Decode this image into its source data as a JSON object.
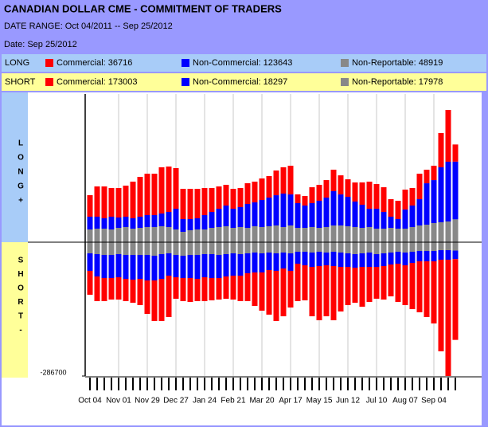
{
  "chart_data": {
    "type": "cot_stacked_bar",
    "title": "CANADIAN DOLLAR CME - COMMITMENT OF TRADERS",
    "date_range": "DATE RANGE: Oct 04/2011 -- Sep 25/2012",
    "date": "Date: Sep 25/2012",
    "long_row": {
      "label": "LONG",
      "legend": [
        "Commercial: 36716",
        "Non-Commercial: 123643",
        "Non-Reportable: 48919"
      ]
    },
    "short_row": {
      "label": "SHORT",
      "legend": [
        "Commercial: 173003",
        "Non-Commercial: 18297",
        "Non-Reportable: 17978"
      ]
    },
    "long_axis_label": "LONG+",
    "short_axis_label": "SHORT-",
    "categories": [
      "Oct 04",
      null,
      null,
      null,
      "Nov 01",
      null,
      null,
      null,
      "Nov 29",
      null,
      null,
      null,
      "Dec 27",
      null,
      null,
      null,
      "Jan 24",
      null,
      null,
      null,
      "Feb 21",
      null,
      null,
      null,
      "Mar 20",
      null,
      null,
      null,
      "Apr 17",
      null,
      null,
      null,
      "May 15",
      null,
      null,
      null,
      "Jun 12",
      null,
      null,
      null,
      "Jul 10",
      null,
      null,
      null,
      "Aug 07",
      null,
      null,
      null,
      "Sep 04",
      null,
      null,
      null
    ],
    "ylim": [
      -286700,
      317400
    ],
    "yticks": [
      -286700
    ],
    "series": [
      {
        "name": "Non-Reportable",
        "group": "long",
        "color": "#888888",
        "values": [
          27300,
          29000,
          29000,
          27300,
          30700,
          32400,
          29000,
          30700,
          32400,
          32400,
          34100,
          32400,
          27300,
          22200,
          25600,
          27300,
          27300,
          30700,
          32400,
          34100,
          30700,
          32400,
          30700,
          34100,
          32400,
          34100,
          35800,
          32400,
          35800,
          30700,
          30700,
          32400,
          30700,
          32400,
          35800,
          35800,
          34100,
          32400,
          30700,
          32400,
          29000,
          29000,
          30700,
          29000,
          29000,
          32400,
          35800,
          37500,
          40900,
          42700,
          44400,
          48919
        ]
      },
      {
        "name": "Non-Commercial",
        "group": "long",
        "color": "#0000ff",
        "values": [
          27300,
          25600,
          22200,
          27300,
          22200,
          22200,
          22200,
          23900,
          25600,
          25600,
          27300,
          32400,
          44400,
          27300,
          23900,
          23900,
          30700,
          34100,
          39200,
          44400,
          40900,
          42700,
          51200,
          51200,
          58000,
          61400,
          64800,
          71700,
          66500,
          52900,
          47800,
          51200,
          58000,
          63100,
          73400,
          66500,
          63100,
          54600,
          49500,
          39200,
          42700,
          35800,
          23900,
          20500,
          40900,
          46100,
          56300,
          88700,
          92100,
          117700,
          128000,
          123643
        ]
      },
      {
        "name": "Commercial",
        "group": "long",
        "color": "#ff0000",
        "values": [
          46100,
          64800,
          68200,
          61400,
          63100,
          66500,
          78500,
          85300,
          88700,
          88700,
          99000,
          97200,
          87000,
          64800,
          64800,
          63100,
          58000,
          51200,
          47800,
          44400,
          42700,
          40900,
          44400,
          44400,
          46100,
          46100,
          52900,
          56300,
          61400,
          18800,
          20500,
          34100,
          34100,
          37500,
          46100,
          40900,
          37500,
          40900,
          47800,
          58000,
          52900,
          52900,
          37500,
          39200,
          42700,
          37500,
          54600,
          29000,
          30700,
          73400,
          110900,
          36716
        ]
      },
      {
        "name": "Non-Reportable",
        "group": "short",
        "color": "#888888",
        "values": [
          23900,
          25600,
          27300,
          27300,
          25600,
          27300,
          27300,
          27300,
          27300,
          29000,
          25600,
          23900,
          27300,
          29000,
          27300,
          27300,
          25600,
          25600,
          27300,
          25600,
          23900,
          25600,
          23900,
          22200,
          23900,
          22200,
          23900,
          22200,
          23900,
          20500,
          20500,
          22200,
          20500,
          22200,
          20500,
          22200,
          23900,
          25600,
          23900,
          22200,
          25600,
          23900,
          22200,
          20500,
          22200,
          20500,
          18800,
          18800,
          18800,
          17100,
          17100,
          17978
        ]
      },
      {
        "name": "Non-Commercial",
        "group": "short",
        "color": "#0000ff",
        "values": [
          37500,
          47800,
          49500,
          49500,
          49500,
          51200,
          52900,
          51200,
          54600,
          52900,
          52900,
          47800,
          47800,
          47800,
          49500,
          51200,
          49500,
          51200,
          49500,
          47800,
          47800,
          46100,
          42700,
          42700,
          40900,
          37500,
          37500,
          34100,
          37500,
          25600,
          29000,
          30700,
          30700,
          27300,
          30700,
          30700,
          29000,
          29000,
          29000,
          30700,
          27300,
          27300,
          25600,
          25600,
          27300,
          23900,
          22200,
          22200,
          22200,
          20500,
          20500,
          18297
        ]
      },
      {
        "name": "Commercial",
        "group": "short",
        "color": "#ff0000",
        "values": [
          51200,
          52900,
          49500,
          46100,
          47800,
          47800,
          49500,
          56300,
          71700,
          87000,
          90400,
          88700,
          46100,
          49500,
          51200,
          47800,
          51200,
          47800,
          46100,
          47800,
          51200,
          54600,
          59700,
          71700,
          81900,
          95500,
          107500,
          102400,
          78500,
          80200,
          75100,
          105800,
          116000,
          109200,
          116000,
          95500,
          81900,
          75100,
          85300,
          75100,
          68200,
          71700,
          68200,
          81900,
          85300,
          99000,
          109200,
          119400,
          133100,
          196200,
          249100,
          173003
        ]
      }
    ],
    "colors": {
      "header": "#9999ff",
      "long_row": "#a8ccf8",
      "short_row": "#ffff99"
    }
  }
}
